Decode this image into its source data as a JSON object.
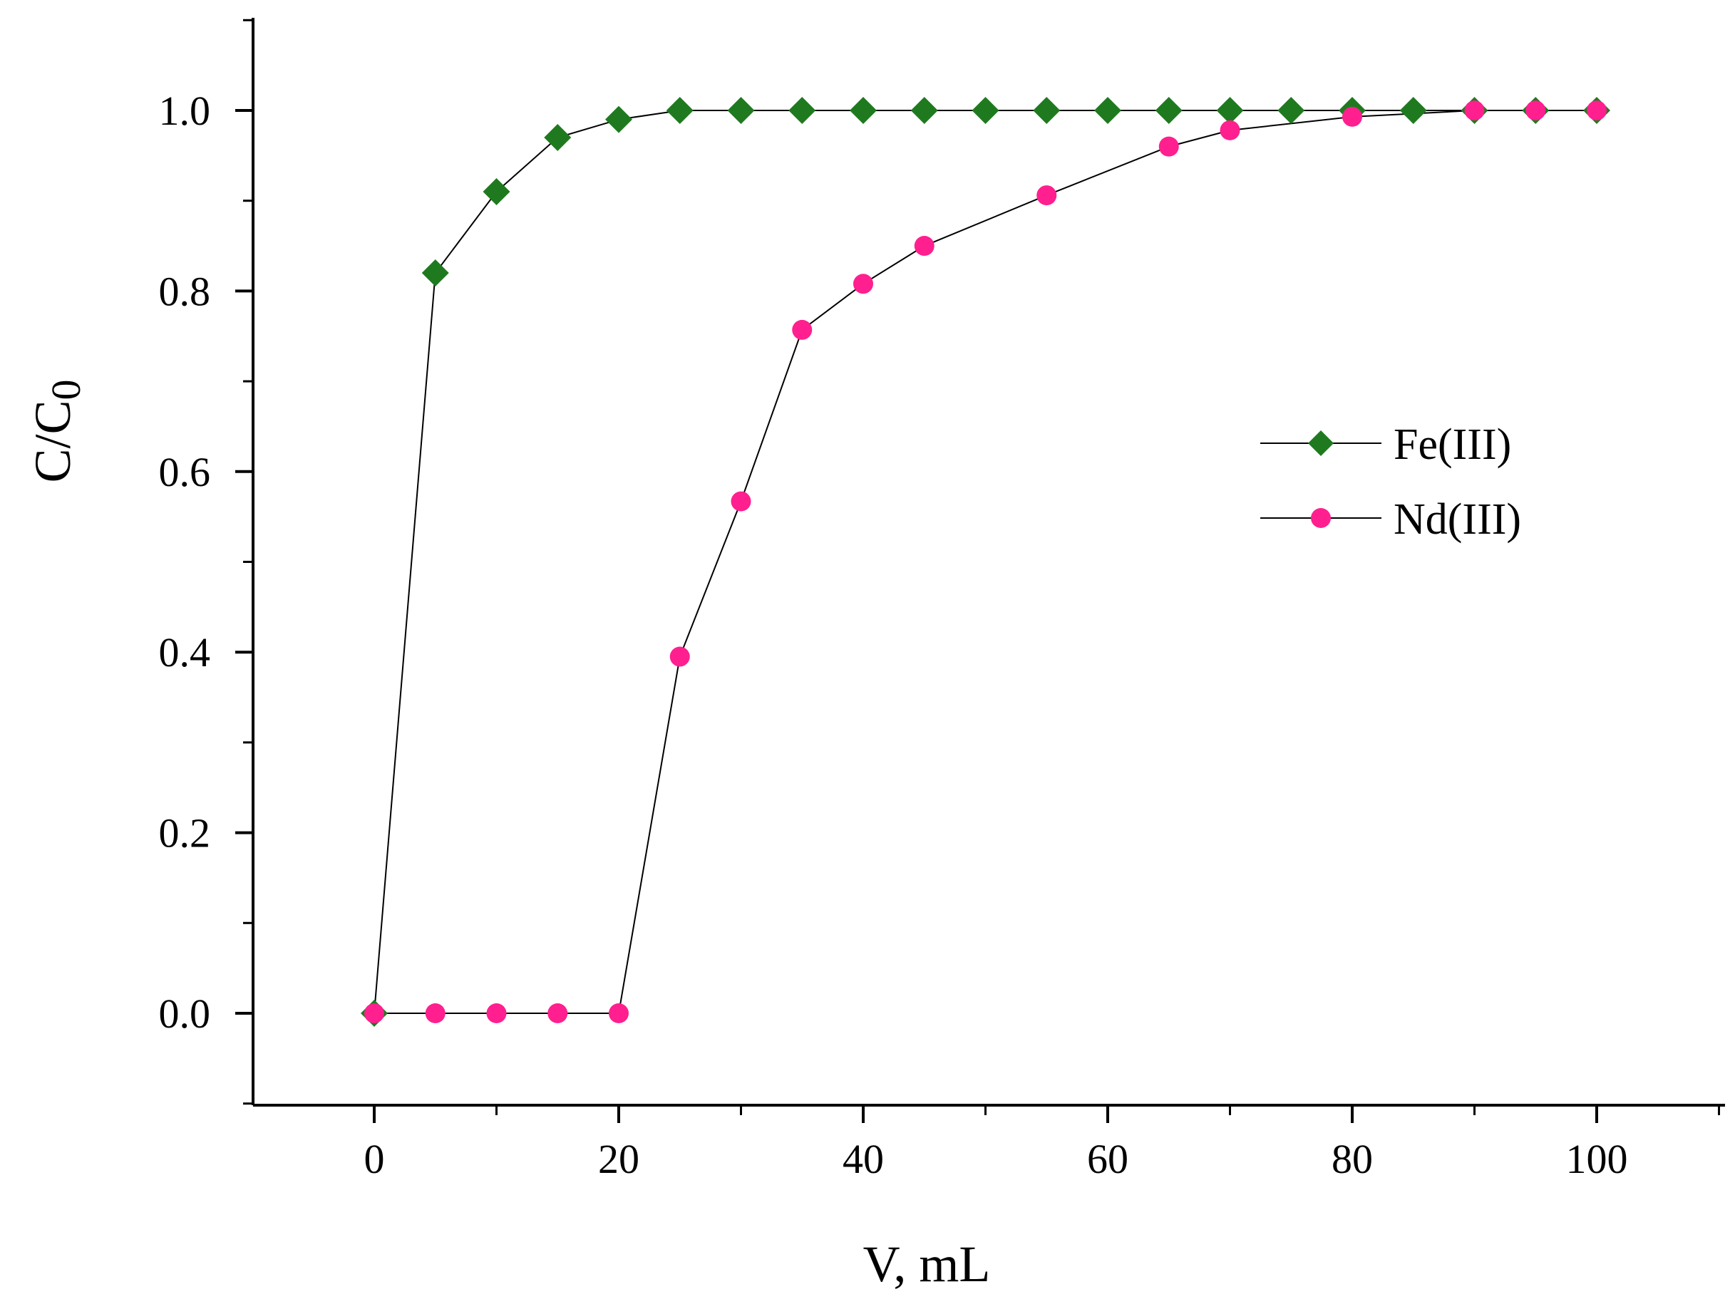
{
  "chart_data": {
    "type": "line",
    "title": "",
    "xlabel": "V, mL",
    "ylabel": "C/C",
    "ylabel_subscript": "0",
    "xlim": [
      -10,
      110
    ],
    "ylim": [
      -0.1,
      1.1
    ],
    "xticks": [
      0,
      20,
      40,
      60,
      80,
      100
    ],
    "xtick_labels": [
      "0",
      "20",
      "40",
      "60",
      "80",
      "100"
    ],
    "yticks": [
      0.0,
      0.2,
      0.4,
      0.6,
      0.8,
      1.0
    ],
    "ytick_labels": [
      "0.0",
      "0.2",
      "0.4",
      "0.6",
      "0.8",
      "1.0"
    ],
    "grid": false,
    "legend_position": "center-right",
    "series": [
      {
        "name": "Fe(III)",
        "marker": "diamond",
        "color": "#1f7a1f",
        "x": [
          0,
          5,
          10,
          15,
          20,
          25,
          30,
          35,
          40,
          45,
          50,
          55,
          60,
          65,
          70,
          75,
          80,
          85,
          90,
          95,
          100
        ],
        "y": [
          0.0,
          0.82,
          0.91,
          0.97,
          0.99,
          1.0,
          1.0,
          1.0,
          1.0,
          1.0,
          1.0,
          1.0,
          1.0,
          1.0,
          1.0,
          1.0,
          1.0,
          1.0,
          1.0,
          1.0,
          1.0
        ]
      },
      {
        "name": "Nd(III)",
        "marker": "circle",
        "color": "#ff1f8f",
        "x": [
          0,
          5,
          10,
          15,
          20,
          25,
          30,
          35,
          40,
          45,
          55,
          65,
          70,
          80,
          90,
          95,
          100
        ],
        "y": [
          0.0,
          0.0,
          0.0,
          0.0,
          0.0,
          0.395,
          0.567,
          0.757,
          0.808,
          0.85,
          0.906,
          0.96,
          0.978,
          0.993,
          1.0,
          1.0,
          1.0
        ]
      }
    ]
  }
}
